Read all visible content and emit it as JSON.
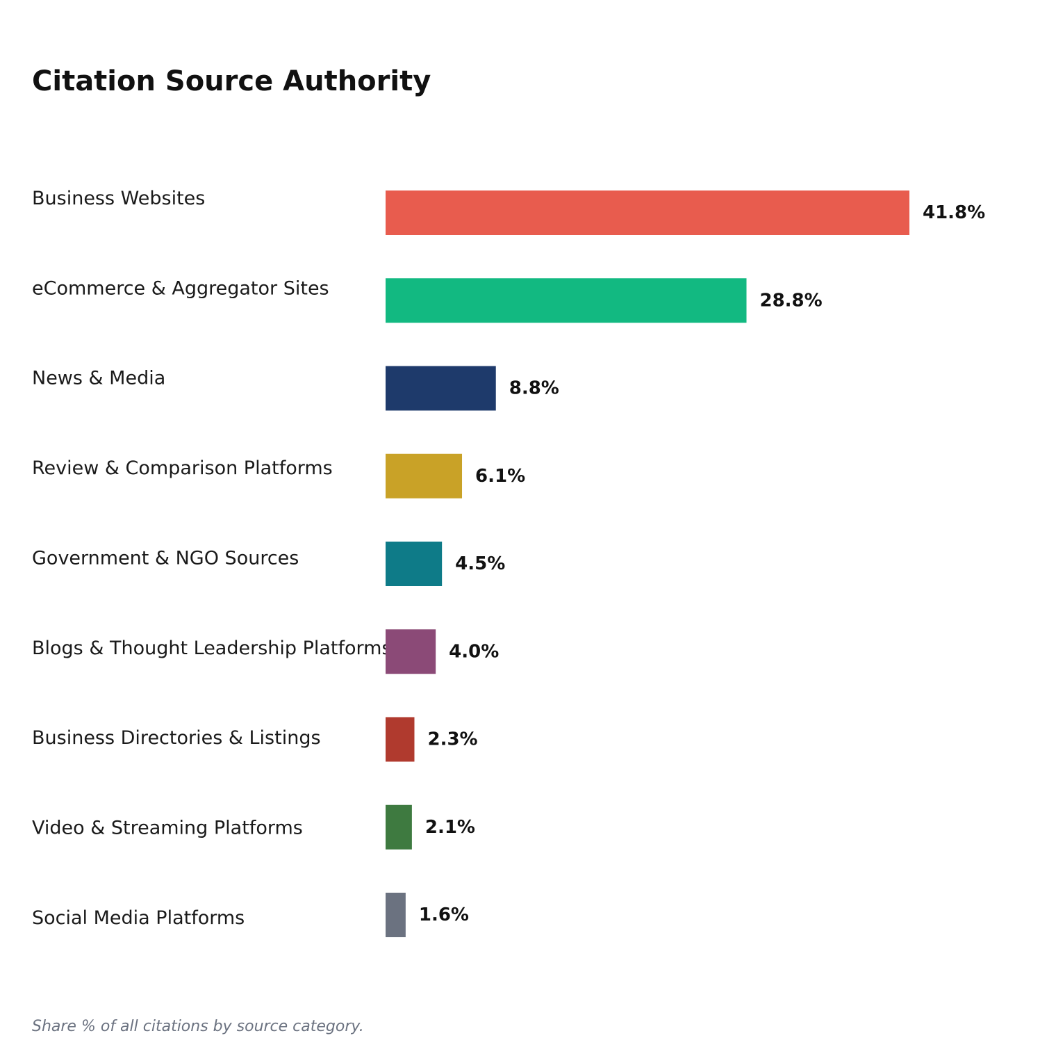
{
  "title": "Citation Source Authority",
  "footnote": "Share % of all citations by source category.",
  "chart_data": {
    "type": "bar",
    "orientation": "horizontal",
    "title": "Citation Source Authority",
    "xlabel": "",
    "ylabel": "",
    "grid": false,
    "xlim": [
      0,
      41.8
    ],
    "value_suffix": "%",
    "categories": [
      "Business Websites",
      "eCommerce & Aggregator Sites",
      "News & Media",
      "Review & Comparison Platforms",
      "Government & NGO Sources",
      "Blogs & Thought Leadership Platforms",
      "Business Directories & Listings",
      "Video & Streaming Platforms",
      "Social Media Platforms"
    ],
    "values": [
      41.8,
      28.8,
      8.8,
      6.1,
      4.5,
      4.0,
      2.3,
      2.1,
      1.6
    ],
    "value_labels": [
      "41.8%",
      "28.8%",
      "8.8%",
      "6.1%",
      "4.5%",
      "4.0%",
      "2.3%",
      "2.1%",
      "1.6%"
    ],
    "colors": [
      "#e85c4e",
      "#12b981",
      "#1e3a6b",
      "#c9a227",
      "#0e7b88",
      "#8b4a77",
      "#b03a2e",
      "#3e7a40",
      "#6b7280"
    ]
  }
}
